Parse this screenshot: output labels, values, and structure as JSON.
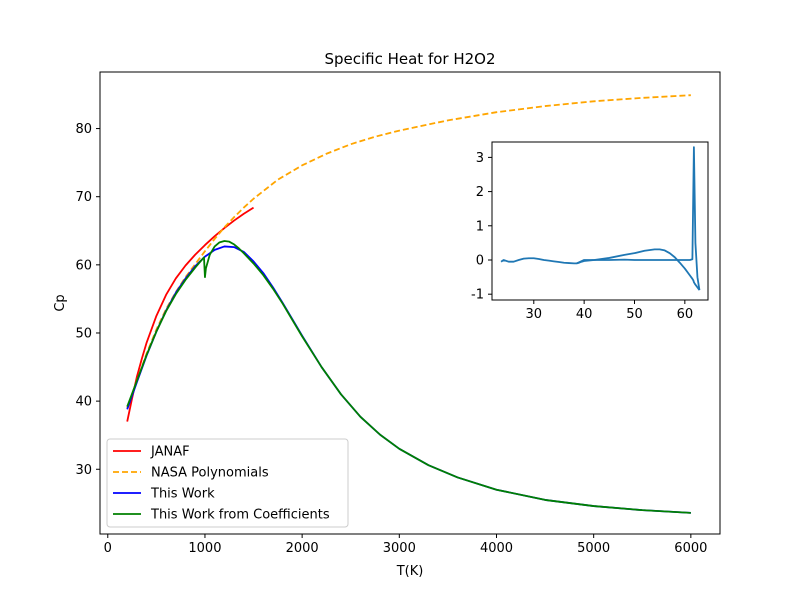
{
  "chart_data": [
    {
      "type": "line",
      "title": "Specific Heat for H2O2",
      "xlabel": "T(K)",
      "ylabel": "Cp",
      "xlim": [
        -80,
        6300
      ],
      "ylim": [
        20.5,
        88.3
      ],
      "xticks": [
        0,
        1000,
        2000,
        3000,
        4000,
        5000,
        6000
      ],
      "yticks": [
        30,
        40,
        50,
        60,
        70,
        80
      ],
      "grid": false,
      "legend": "lower-left",
      "series": [
        {
          "name": "JANAF",
          "color": "#ff0000",
          "dash": "solid",
          "x": [
            200,
            250,
            300,
            350,
            400,
            500,
            600,
            700,
            800,
            900,
            1000,
            1100,
            1200,
            1300,
            1400,
            1500
          ],
          "y": [
            37.0,
            40.4,
            43.6,
            46.2,
            48.6,
            52.5,
            55.6,
            58.0,
            59.9,
            61.5,
            62.9,
            64.2,
            65.4,
            66.5,
            67.5,
            68.4
          ]
        },
        {
          "name": "NASA Polynomials",
          "color": "#ffa500",
          "dash": "dashed",
          "x": [
            200,
            300,
            400,
            500,
            600,
            700,
            800,
            900,
            1000,
            1100,
            1200,
            1300,
            1400,
            1500,
            1750,
            2000,
            2250,
            2500,
            2750,
            3000,
            3500,
            4000,
            4500,
            5000,
            5500,
            6000
          ],
          "y": [
            39.0,
            43.0,
            47.0,
            50.5,
            53.5,
            56.0,
            58.2,
            60.1,
            62.0,
            63.8,
            65.5,
            67.0,
            68.4,
            69.7,
            72.5,
            74.6,
            76.3,
            77.7,
            78.8,
            79.7,
            81.2,
            82.4,
            83.3,
            84.0,
            84.5,
            84.9
          ]
        },
        {
          "name": "This Work",
          "color": "#0000ff",
          "dash": "solid",
          "x": [
            200,
            300,
            400,
            500,
            600,
            700,
            800,
            900,
            1000,
            1100,
            1200,
            1300,
            1400,
            1500,
            1600,
            1700,
            1800,
            1900,
            2000,
            2200,
            2400,
            2600,
            2800,
            3000,
            3300,
            3600,
            4000,
            4500,
            5000,
            5500,
            6000
          ],
          "y": [
            38.8,
            42.8,
            46.7,
            50.2,
            53.3,
            55.9,
            58.0,
            59.8,
            61.2,
            62.2,
            62.7,
            62.6,
            61.9,
            60.5,
            58.8,
            56.7,
            54.4,
            52.0,
            49.6,
            45.0,
            41.0,
            37.7,
            35.1,
            33.0,
            30.6,
            28.8,
            27.0,
            25.5,
            24.6,
            24.0,
            23.6
          ]
        },
        {
          "name": "This Work from Coefficients",
          "color": "#008000",
          "dash": "solid",
          "x": [
            200,
            300,
            400,
            500,
            600,
            700,
            800,
            900,
            990,
            1000,
            1010,
            1050,
            1100,
            1150,
            1200,
            1250,
            1300,
            1350,
            1400,
            1500,
            1600,
            1700,
            1800,
            1900,
            2000,
            2200,
            2400,
            2600,
            2800,
            3000,
            3300,
            3600,
            4000,
            4500,
            5000,
            5500,
            6000
          ],
          "y": [
            39.2,
            43.0,
            46.8,
            50.2,
            53.2,
            55.7,
            57.8,
            59.6,
            61.1,
            58.2,
            59.5,
            61.5,
            62.7,
            63.3,
            63.5,
            63.4,
            63.0,
            62.4,
            61.7,
            60.2,
            58.5,
            56.5,
            54.3,
            51.9,
            49.5,
            45.0,
            41.0,
            37.7,
            35.1,
            33.0,
            30.6,
            28.8,
            27.0,
            25.5,
            24.6,
            24.0,
            23.6
          ]
        }
      ]
    },
    {
      "type": "line",
      "title": "",
      "xlabel": "",
      "ylabel": "",
      "xlim": [
        21.7,
        64.6
      ],
      "ylim": [
        -1.17,
        3.45
      ],
      "xticks": [
        30,
        40,
        50,
        60
      ],
      "yticks": [
        -1,
        0,
        1,
        2,
        3
      ],
      "grid": false,
      "series": [
        {
          "color": "#1f77b4",
          "dash": "solid",
          "x": [
            23.5,
            24.0,
            25.0,
            26.0,
            27.0,
            28.0,
            29.0,
            30.0,
            31.0,
            32.0,
            33.0,
            34.0,
            35.0,
            36.0,
            37.0,
            38.0,
            38.5,
            39.0,
            39.5,
            40.0,
            42.0,
            45.0,
            48.0,
            50.0,
            52.0,
            54.0,
            55.0,
            56.0,
            57.0,
            58.0,
            59.0,
            60.0,
            61.0,
            61.5,
            61.7,
            61.8,
            62.0,
            62.5,
            62.9
          ],
          "y": [
            -0.05,
            0.0,
            -0.05,
            -0.05,
            0.0,
            0.04,
            0.05,
            0.05,
            0.03,
            0.0,
            -0.02,
            -0.04,
            -0.06,
            -0.08,
            -0.09,
            -0.1,
            -0.1,
            -0.08,
            -0.05,
            -0.03,
            0.0,
            0.06,
            0.15,
            0.2,
            0.27,
            0.31,
            0.31,
            0.28,
            0.2,
            0.08,
            -0.08,
            -0.25,
            -0.45,
            -0.55,
            -0.6,
            -0.65,
            -0.7,
            -0.8,
            -0.88
          ]
        },
        {
          "color": "#1f77b4",
          "dash": "solid",
          "x": [
            38.5,
            40.0,
            42.0,
            45.0,
            48.0,
            50.0,
            54.0,
            58.0,
            61.0,
            61.5,
            61.8,
            62.1,
            62.5,
            62.9
          ],
          "y": [
            -0.1,
            0.0,
            0.0,
            0.0,
            0.01,
            0.0,
            0.0,
            0.0,
            0.0,
            0.02,
            3.3,
            0.5,
            -0.5,
            -0.88
          ]
        }
      ]
    }
  ]
}
